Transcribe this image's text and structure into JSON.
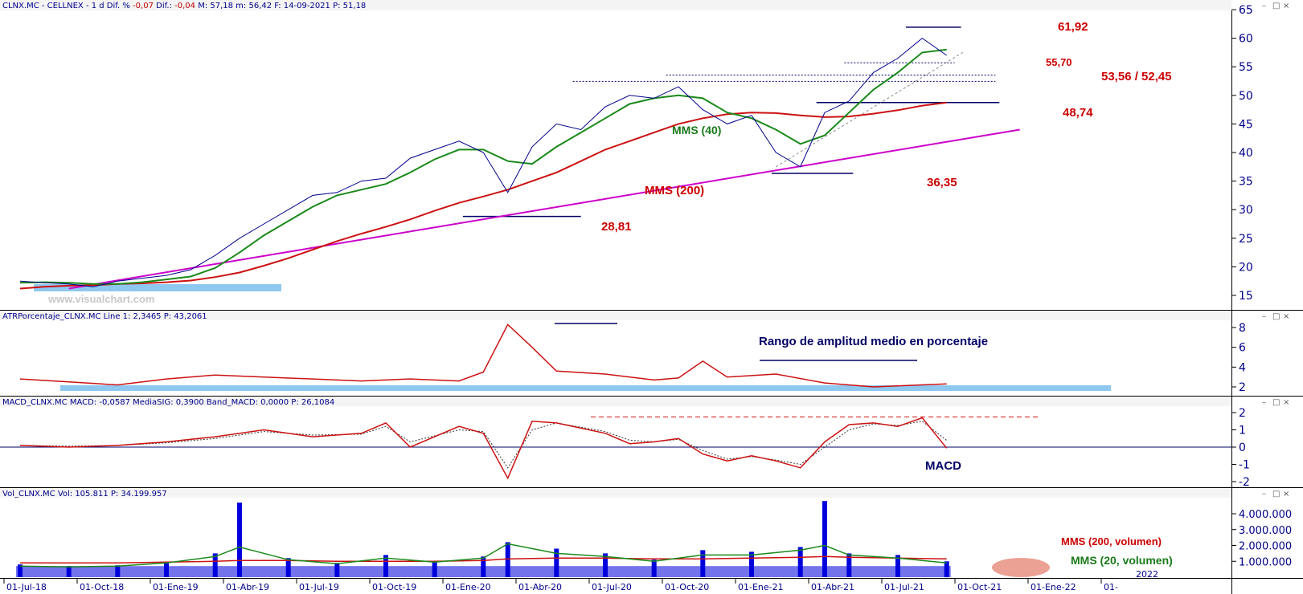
{
  "price_panel": {
    "header_parts": [
      {
        "text": "CLNX.MC - CELLNEX - 1 d  Dif. % ",
        "color": "navy"
      },
      {
        "text": "-0,07",
        "color": "red"
      },
      {
        "text": "  Dif.: ",
        "color": "navy"
      },
      {
        "text": "-0,04",
        "color": "red"
      },
      {
        "text": "  M: 57,18  m: 56,42  F: 14-09-2021  P: 51,18",
        "color": "navy"
      }
    ],
    "y_ticks": [
      "15",
      "20",
      "25",
      "30",
      "35",
      "40",
      "45",
      "50",
      "55",
      "60",
      "65"
    ],
    "watermark": "www.visualchart.com",
    "annotations": {
      "high": "61,92",
      "r1": "55,70",
      "r2": "53,56 / 52,45",
      "s1": "48,74",
      "low1": "36,35",
      "low2": "28,81",
      "mms40": "MMS (40)",
      "mms200": "MMS (200)"
    }
  },
  "atr_panel": {
    "header": "ATRPorcentaje_CLNX.MC  Line 1: 2,3465  P: 43,2061",
    "y_ticks": [
      "2",
      "4",
      "6",
      "8"
    ],
    "title": "Rango de amplitud medio en porcentaje"
  },
  "macd_panel": {
    "header": "MACD_CLNX.MC  MACD: -0,0587  MediaSIG: 0,3900  Band_MACD: 0,0000  P: 26,1084",
    "y_ticks": [
      "-2",
      "-1",
      "0",
      "1",
      "2"
    ],
    "label": "MACD"
  },
  "vol_panel": {
    "header": "Vol_CLNX.MC  Vol: 105.811  P: 34.199.957",
    "y_ticks": [
      "1.000.000",
      "2.000.000",
      "3.000.000",
      "4.000.000"
    ],
    "label_200": "MMS (200, volumen)",
    "label_20": "MMS (20, volumen)",
    "year_marker": "2022"
  },
  "x_axis": {
    "ticks": [
      "01-Jul-18",
      "01-Oct-18",
      "01-Ene-19",
      "01-Abr-19",
      "01-Jul-19",
      "01-Oct-19",
      "01-Ene-20",
      "01-Abr-20",
      "01-Jul-20",
      "01-Oct-20",
      "01-Ene-21",
      "01-Abr-21",
      "01-Jul-21",
      "01-Oct-21",
      "01-Ene-22",
      "01-"
    ]
  },
  "colors": {
    "price": "#00008b",
    "mms40": "#1a8a1a",
    "mms200": "#cc1111",
    "trend": "#cc00cc",
    "annotation": "#cc0000",
    "volume": "#0000dd",
    "highlight": "#8ec8f0"
  },
  "chart_data": [
    {
      "type": "line",
      "x_unit": "month",
      "x": [
        "2018-07",
        "2018-08",
        "2018-09",
        "2018-10",
        "2018-11",
        "2018-12",
        "2019-01",
        "2019-02",
        "2019-03",
        "2019-04",
        "2019-05",
        "2019-06",
        "2019-07",
        "2019-08",
        "2019-09",
        "2019-10",
        "2019-11",
        "2019-12",
        "2020-01",
        "2020-02",
        "2020-03",
        "2020-04",
        "2020-05",
        "2020-06",
        "2020-07",
        "2020-08",
        "2020-09",
        "2020-10",
        "2020-11",
        "2020-12",
        "2021-01",
        "2021-02",
        "2021-03",
        "2021-04",
        "2021-05",
        "2021-06",
        "2021-07",
        "2021-08",
        "2021-09"
      ],
      "series": [
        {
          "name": "",
          "values": [
            17.5,
            17.2,
            17.0,
            16.5,
            17.5,
            18.0,
            18.5,
            19.5,
            22.0,
            25.0,
            27.5,
            30.0,
            32.5,
            33.0,
            35.0,
            35.5,
            39.0,
            40.5,
            42.0,
            40.0,
            33.0,
            41.0,
            45.0,
            44.0,
            48.0,
            50.0,
            49.5,
            51.5,
            47.5,
            45.0,
            46.5,
            40.0,
            37.5,
            47.0,
            49.0,
            54.0,
            56.5,
            60.0,
            57.0
          ]
        },
        {
          "name": "MMS (40)",
          "values": [
            17.2,
            17.3,
            17.2,
            17.0,
            17.0,
            17.3,
            17.8,
            18.3,
            19.8,
            22.5,
            25.5,
            28.0,
            30.5,
            32.5,
            33.5,
            34.5,
            36.5,
            38.8,
            40.5,
            40.5,
            38.5,
            38.0,
            41.0,
            43.5,
            46.0,
            48.5,
            49.5,
            50.0,
            49.5,
            47.0,
            46.0,
            44.0,
            41.5,
            43.0,
            47.0,
            51.0,
            54.0,
            57.5,
            58.0
          ]
        },
        {
          "name": "MMS (200)",
          "values": [
            16.2,
            16.5,
            16.7,
            16.8,
            17.0,
            17.1,
            17.3,
            17.6,
            18.2,
            19.0,
            20.2,
            21.5,
            23.0,
            24.5,
            25.8,
            27.0,
            28.3,
            29.8,
            31.2,
            32.3,
            33.5,
            35.0,
            36.5,
            38.5,
            40.5,
            42.0,
            43.5,
            45.0,
            46.0,
            46.7,
            47.0,
            46.9,
            46.5,
            46.2,
            46.3,
            46.8,
            47.4,
            48.2,
            48.74
          ]
        }
      ],
      "ylim": [
        12,
        65
      ],
      "y_ticks": [
        15,
        20,
        25,
        30,
        35,
        40,
        45,
        50,
        55,
        60,
        65
      ],
      "levels": [
        61.92,
        55.7,
        53.56,
        52.45,
        48.74,
        36.35,
        28.81
      ],
      "trendline": {
        "from": [
          "2018-09",
          16.2
        ],
        "to": [
          "2021-12",
          44.0
        ]
      }
    },
    {
      "type": "line",
      "name": "ATRPorcentaje",
      "x_unit": "month",
      "x": [
        "2018-07",
        "2018-09",
        "2018-11",
        "2019-01",
        "2019-03",
        "2019-05",
        "2019-07",
        "2019-09",
        "2019-11",
        "2020-01",
        "2020-02",
        "2020-03",
        "2020-04",
        "2020-05",
        "2020-07",
        "2020-09",
        "2020-10",
        "2020-11",
        "2020-12",
        "2021-02",
        "2021-04",
        "2021-06",
        "2021-08",
        "2021-09"
      ],
      "series": [
        {
          "name": "",
          "values": [
            2.8,
            2.5,
            2.2,
            2.8,
            3.2,
            3.0,
            2.8,
            2.6,
            2.8,
            2.6,
            3.5,
            8.3,
            6.0,
            3.6,
            3.3,
            2.7,
            2.9,
            4.6,
            3.0,
            3.3,
            2.4,
            2.0,
            2.2,
            2.3
          ]
        }
      ],
      "ylim": [
        1,
        9
      ],
      "y_ticks": [
        2,
        4,
        6,
        8
      ]
    },
    {
      "type": "line",
      "name": "MACD",
      "x_unit": "month",
      "x": [
        "2018-07",
        "2018-09",
        "2018-11",
        "2019-01",
        "2019-03",
        "2019-05",
        "2019-07",
        "2019-09",
        "2019-10",
        "2019-11",
        "2020-01",
        "2020-02",
        "2020-03",
        "2020-04",
        "2020-05",
        "2020-07",
        "2020-08",
        "2020-09",
        "2020-10",
        "2020-11",
        "2020-12",
        "2021-01",
        "2021-02",
        "2021-03",
        "2021-04",
        "2021-05",
        "2021-06",
        "2021-07",
        "2021-08",
        "2021-09"
      ],
      "series": [
        {
          "name": "",
          "values": [
            0.1,
            0.0,
            0.1,
            0.3,
            0.6,
            1.0,
            0.6,
            0.8,
            1.4,
            0.0,
            1.2,
            0.8,
            -1.8,
            1.5,
            1.4,
            0.8,
            0.2,
            0.3,
            0.5,
            -0.4,
            -0.8,
            -0.5,
            -0.8,
            -1.2,
            0.3,
            1.3,
            1.4,
            1.2,
            1.7,
            -0.06
          ]
        },
        {
          "name": "MediaSIG",
          "values": [
            0.1,
            0.05,
            0.1,
            0.25,
            0.5,
            0.9,
            0.7,
            0.75,
            1.2,
            0.3,
            1.0,
            0.9,
            -1.2,
            1.0,
            1.4,
            0.9,
            0.4,
            0.3,
            0.45,
            -0.2,
            -0.7,
            -0.55,
            -0.75,
            -1.0,
            0.0,
            1.0,
            1.35,
            1.25,
            1.5,
            0.39
          ]
        }
      ],
      "ylim": [
        -2.5,
        2.2
      ],
      "y_ticks": [
        -2,
        -1,
        0,
        1,
        2
      ]
    },
    {
      "type": "bar",
      "name": "Volumen",
      "x_unit": "month",
      "x": [
        "2018-07",
        "2018-09",
        "2018-11",
        "2019-01",
        "2019-03",
        "2019-04",
        "2019-06",
        "2019-08",
        "2019-10",
        "2019-12",
        "2020-02",
        "2020-03",
        "2020-05",
        "2020-07",
        "2020-09",
        "2020-11",
        "2021-01",
        "2021-03",
        "2021-04",
        "2021-05",
        "2021-07",
        "2021-09"
      ],
      "values": [
        800000,
        700000,
        750000,
        900000,
        1500000,
        4700000,
        1200000,
        900000,
        1400000,
        1000000,
        1300000,
        2200000,
        1800000,
        1500000,
        1100000,
        1700000,
        1600000,
        1900000,
        4800000,
        1500000,
        1400000,
        1000000
      ],
      "series": [
        {
          "name": "MMS (200, volumen)",
          "values": [
            900000,
            900000,
            900000,
            950000,
            1000000,
            1050000,
            1050000,
            1000000,
            1000000,
            1000000,
            1050000,
            1150000,
            1200000,
            1200000,
            1150000,
            1150000,
            1200000,
            1250000,
            1300000,
            1250000,
            1200000,
            1150000
          ]
        },
        {
          "name": "MMS (20, volumen)",
          "values": [
            700000,
            650000,
            700000,
            900000,
            1300000,
            1900000,
            1100000,
            850000,
            1200000,
            950000,
            1200000,
            2100000,
            1500000,
            1300000,
            1000000,
            1400000,
            1400000,
            1700000,
            2000000,
            1400000,
            1200000,
            900000
          ]
        }
      ],
      "ylim": [
        0,
        4800000
      ],
      "y_ticks": [
        1000000,
        2000000,
        3000000,
        4000000
      ]
    }
  ]
}
